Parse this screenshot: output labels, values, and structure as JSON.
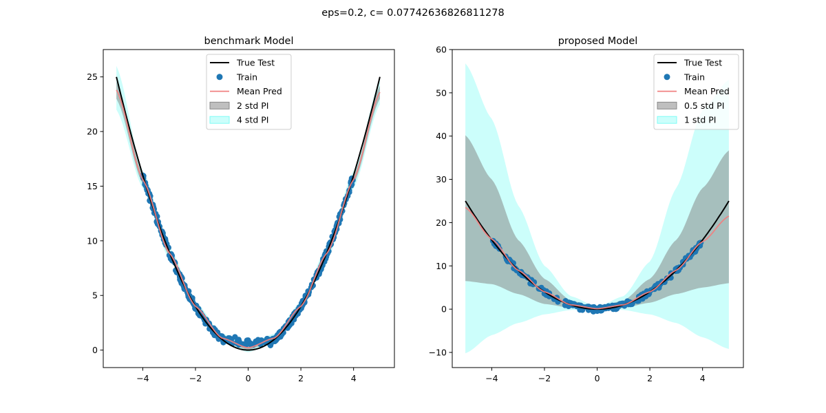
{
  "figure": {
    "suptitle": "eps=0.2, c= 0.07742636826811278"
  },
  "colors": {
    "true_test": "#000000",
    "train": "#1f77b4",
    "mean_pred": "#f08080",
    "inner_band": "#808080",
    "outer_band": "#7ffcf6"
  },
  "chart_data": [
    {
      "type": "line",
      "title": "benchmark Model",
      "xlim": [
        -5.5,
        5.55
      ],
      "ylim": [
        -1.6,
        27.5
      ],
      "xticks": [
        -4,
        -2,
        0,
        2,
        4
      ],
      "yticks": [
        0,
        5,
        10,
        15,
        20,
        25
      ],
      "legend": {
        "position": "upper-center",
        "entries": [
          "True Test",
          "Train",
          "Mean Pred",
          "2 std PI",
          "4 std PI"
        ]
      },
      "true_test": {
        "x_range": [
          -5,
          5
        ],
        "function": "x^2"
      },
      "train": {
        "x_range": [
          [
            -4,
            -0.8
          ],
          [
            0.8,
            4
          ]
        ],
        "note_points": "dense around y = x^2",
        "center": [
          [
            -0.5,
            1.2
          ],
          [
            0,
            0.9
          ],
          [
            0.5,
            0.9
          ]
        ]
      },
      "mean_pred": {
        "x": [
          -5,
          -4,
          -3,
          -2,
          -1,
          0,
          1,
          2,
          3,
          4,
          5
        ],
        "y": [
          23.8,
          15.6,
          8.9,
          4.0,
          1.1,
          0.2,
          1.1,
          4.0,
          8.9,
          15.6,
          23.6
        ]
      },
      "band_inner": {
        "x": [
          -5,
          -4,
          -3,
          -2,
          -1,
          0,
          1,
          2,
          3,
          4,
          5
        ],
        "lower": [
          23.0,
          15.2,
          8.6,
          3.8,
          0.9,
          0.0,
          0.9,
          3.8,
          8.6,
          15.2,
          23.0
        ],
        "upper": [
          24.6,
          16.0,
          9.2,
          4.2,
          1.3,
          0.4,
          1.3,
          4.2,
          9.2,
          16.0,
          24.2
        ]
      },
      "band_outer": {
        "x": [
          -5,
          -4,
          -3,
          -2,
          -1,
          0,
          1,
          2,
          3,
          4,
          5
        ],
        "lower": [
          22.0,
          14.8,
          8.3,
          3.6,
          0.7,
          -0.2,
          0.7,
          3.6,
          8.3,
          14.8,
          22.5
        ],
        "upper": [
          26.0,
          16.4,
          9.5,
          4.4,
          1.5,
          0.6,
          1.5,
          4.4,
          9.5,
          16.4,
          24.7
        ]
      }
    },
    {
      "type": "line",
      "title": "proposed Model",
      "xlim": [
        -5.5,
        5.55
      ],
      "ylim": [
        -13.5,
        60.0
      ],
      "xticks": [
        -4,
        -2,
        0,
        2,
        4
      ],
      "yticks": [
        -10,
        0,
        10,
        20,
        30,
        40,
        50,
        60
      ],
      "legend": {
        "position": "upper-right",
        "entries": [
          "True Test",
          "Train",
          "Mean Pred",
          "0.5 std PI",
          "1 std PI"
        ]
      },
      "true_test": {
        "x_range": [
          -5,
          5
        ],
        "function": "x^2"
      },
      "train": {
        "x_range": [
          [
            -4,
            4
          ]
        ],
        "note_points": "dense around y = x^2"
      },
      "mean_pred": {
        "x": [
          -5,
          -4,
          -3,
          -2,
          -1,
          0,
          1,
          2,
          3,
          4,
          5
        ],
        "y": [
          23.5,
          16.2,
          9.0,
          4.0,
          1.0,
          0.1,
          1.0,
          4.0,
          9.0,
          15.6,
          21.5
        ]
      },
      "band_inner": {
        "x": [
          -5,
          -4,
          -3,
          -2,
          -1,
          0,
          1,
          2,
          3,
          4,
          5
        ],
        "lower": [
          6.5,
          5.8,
          3.5,
          1.2,
          0.3,
          0.0,
          0.3,
          1.5,
          3.5,
          5.0,
          6.0
        ],
        "upper": [
          40.2,
          30.0,
          16.0,
          7.0,
          2.0,
          0.3,
          2.0,
          7.0,
          16.0,
          28.0,
          36.7
        ]
      },
      "band_outer": {
        "x": [
          -5,
          -4,
          -3,
          -2,
          -1,
          0,
          1,
          2,
          3,
          4,
          5
        ],
        "lower": [
          -10.2,
          -6.0,
          -3.2,
          -1.2,
          -0.2,
          0.0,
          -0.2,
          -1.2,
          -3.2,
          -6.5,
          -9.2
        ],
        "upper": [
          56.8,
          44.0,
          24.0,
          10.0,
          3.0,
          0.5,
          3.0,
          11.0,
          28.0,
          46.0,
          53.0
        ]
      }
    }
  ]
}
